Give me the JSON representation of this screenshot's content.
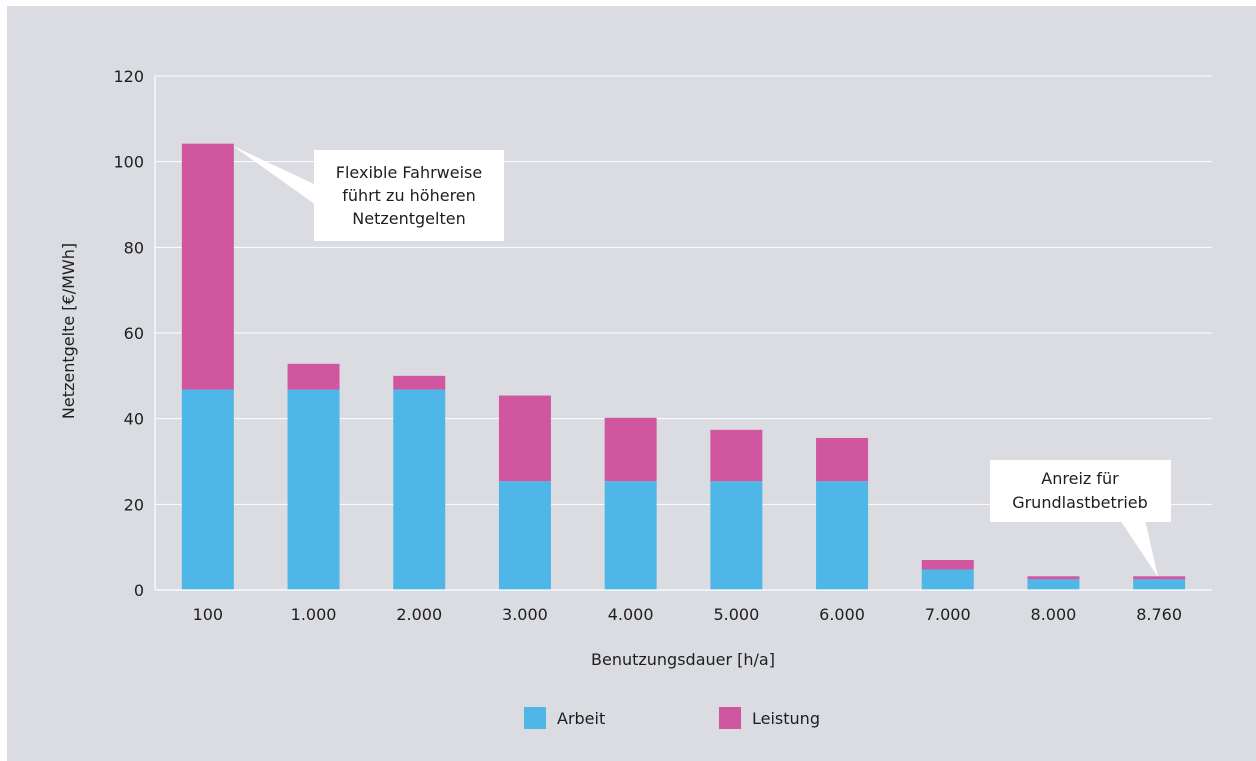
{
  "chart_data": {
    "type": "bar",
    "stacked": true,
    "categories": [
      "100",
      "1.000",
      "2.000",
      "3.000",
      "4.000",
      "5.000",
      "6.000",
      "7.000",
      "8.000",
      "8.760"
    ],
    "series": [
      {
        "name": "Arbeit",
        "color": "#4fb7e8",
        "values": [
          46.8,
          46.8,
          46.8,
          25.4,
          25.4,
          25.4,
          25.4,
          4.8,
          2.5,
          2.5
        ]
      },
      {
        "name": "Leistung",
        "color": "#d056a0",
        "values": [
          57.4,
          6.0,
          3.2,
          20.0,
          14.8,
          12.0,
          10.1,
          2.2,
          0.7,
          0.7
        ]
      }
    ],
    "xlabel": "Benutzungsdauer [h/a]",
    "ylabel": "Netzentgelte [€/MWh]",
    "ylim": [
      0,
      120
    ],
    "yticks": [
      "0",
      "20",
      "40",
      "60",
      "80",
      "100",
      "120"
    ],
    "grid": true,
    "legend_position": "bottom",
    "annotations": [
      {
        "lines": [
          "Flexible Fahrweise",
          "führt zu höheren",
          "Netzentgelten"
        ],
        "target_category": "100"
      },
      {
        "lines": [
          "Anreiz für",
          "Grundlastbetrieb"
        ],
        "target_category": "8.760"
      }
    ]
  }
}
